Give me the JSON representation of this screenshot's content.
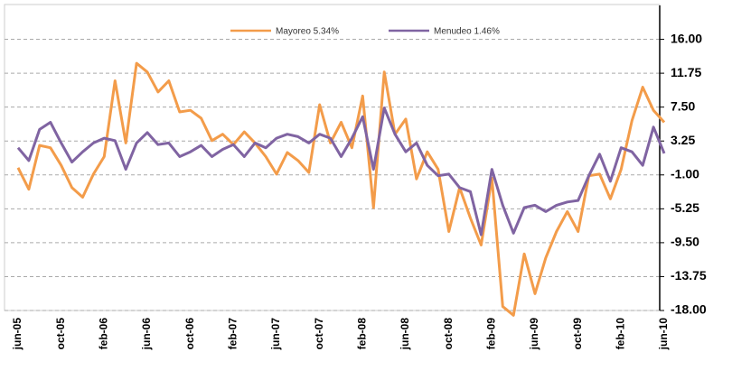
{
  "chart_data": {
    "type": "line",
    "categories": [
      "jun-05",
      null,
      null,
      null,
      "oct-05",
      null,
      null,
      null,
      "feb-06",
      null,
      null,
      null,
      "jun-06",
      null,
      null,
      null,
      "oct-06",
      null,
      null,
      null,
      "feb-07",
      null,
      null,
      null,
      "jun-07",
      null,
      null,
      null,
      "oct-07",
      null,
      null,
      null,
      "feb-08",
      null,
      null,
      null,
      "jun-08",
      null,
      null,
      null,
      "oct-08",
      null,
      null,
      null,
      "feb-09",
      null,
      null,
      null,
      "jun-09",
      null,
      null,
      null,
      "oct-09",
      null,
      null,
      null,
      "feb-10",
      null,
      null,
      null,
      "jun-10"
    ],
    "series": [
      {
        "name": "Mayoreo 5.34%",
        "color": "#f39c4a",
        "values": [
          -0.1,
          -2.8,
          2.7,
          2.4,
          0.2,
          -2.6,
          -3.8,
          -0.9,
          1.3,
          10.8,
          3.0,
          13.0,
          11.9,
          9.4,
          10.8,
          6.9,
          7.1,
          6.1,
          3.3,
          4.1,
          2.8,
          4.4,
          3.0,
          1.3,
          -0.9,
          1.8,
          0.8,
          -0.7,
          7.8,
          3.0,
          5.6,
          2.4,
          8.9,
          -5.1,
          11.9,
          4.1,
          6.0,
          -1.5,
          1.9,
          -0.3,
          -8.1,
          -2.6,
          -6.4,
          -9.8,
          -1.4,
          -17.5,
          -18.6,
          -10.9,
          -15.9,
          -11.4,
          -8.1,
          -5.6,
          -8.1,
          -1.1,
          -0.9,
          -4.0,
          -0.3,
          5.8,
          10.0,
          7.1,
          5.6
        ]
      },
      {
        "name": "Menudeo 1.46%",
        "color": "#8064a2",
        "values": [
          2.4,
          0.8,
          4.7,
          5.6,
          3.0,
          0.6,
          1.9,
          3.0,
          3.6,
          3.3,
          -0.3,
          3.0,
          4.3,
          2.8,
          3.0,
          1.3,
          1.9,
          2.7,
          1.3,
          2.2,
          2.8,
          1.3,
          3.0,
          2.4,
          3.6,
          4.1,
          3.8,
          3.0,
          4.1,
          3.6,
          1.3,
          3.6,
          6.3,
          -0.3,
          7.4,
          4.1,
          1.9,
          3.0,
          0.2,
          -1.1,
          -0.9,
          -2.6,
          -3.1,
          -8.5,
          -0.3,
          -4.8,
          -8.3,
          -5.1,
          -4.8,
          -5.6,
          -4.8,
          -4.4,
          -4.2,
          -1.1,
          1.6,
          -1.8,
          2.4,
          1.9,
          0.2,
          5.0,
          1.7
        ]
      }
    ],
    "ylim": [
      -18,
      20.25
    ],
    "yticks": [
      {
        "value": 16,
        "label": "16.00"
      },
      {
        "value": 11.75,
        "label": "11.75"
      },
      {
        "value": 7.5,
        "label": "7.50"
      },
      {
        "value": 3.25,
        "label": "3.25"
      },
      {
        "value": -1,
        "label": "-1.00"
      },
      {
        "value": -5.25,
        "label": "-5.25"
      },
      {
        "value": -9.5,
        "label": "-9.50"
      },
      {
        "value": -13.75,
        "label": "-13.75"
      },
      {
        "value": -18,
        "label": "-18.00"
      }
    ],
    "grid": true,
    "legend": "top"
  }
}
